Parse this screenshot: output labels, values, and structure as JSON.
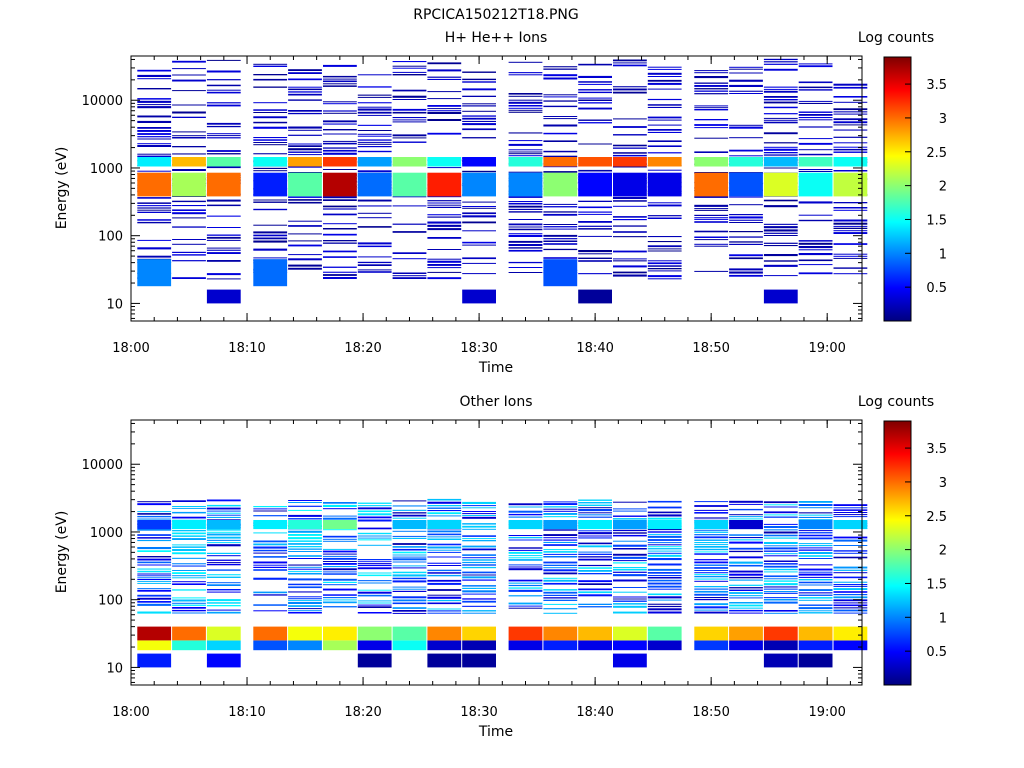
{
  "figure": {
    "title": "RPCICA150212T18.PNG"
  },
  "chart_data": [
    {
      "type": "heatmap",
      "title": "H+ He++ Ions",
      "xlabel": "Time",
      "ylabel": "Energy (eV)",
      "x_ticks": [
        "18:00",
        "18:10",
        "18:20",
        "18:30",
        "18:40",
        "18:50",
        "19:00"
      ],
      "y_ticks": [
        "10",
        "100",
        "1000",
        "10000"
      ],
      "y_scale": "log",
      "xlim": [
        "18:00",
        "19:03"
      ],
      "ylim": [
        5.5,
        45000
      ],
      "time_bins": [
        "18:02",
        "18:05",
        "18:08",
        "18:12",
        "18:15",
        "18:18",
        "18:21",
        "18:24",
        "18:27",
        "18:30",
        "18:34",
        "18:37",
        "18:40",
        "18:43",
        "18:46",
        "18:50",
        "18:53",
        "18:56",
        "18:59",
        "19:02"
      ],
      "colorbar": {
        "label": "Log counts",
        "ticks": [
          "0.5",
          "1",
          "1.5",
          "2",
          "2.5",
          "3",
          "3.5"
        ],
        "range": [
          0,
          3.9
        ]
      },
      "profile_peak": [
        {
          "energy_min": 1050,
          "energy_max": 1450,
          "log_counts": [
            1.4,
            2.7,
            1.8,
            1.5,
            2.8,
            3.2,
            1.1,
            2.0,
            1.5,
            0.5,
            1.6,
            3.0,
            3.1,
            3.2,
            2.9,
            2.0,
            1.6,
            1.2,
            1.7,
            1.5
          ]
        },
        {
          "energy_min": 380,
          "energy_max": 850,
          "log_counts": [
            3.0,
            2.1,
            3.0,
            0.6,
            1.8,
            3.7,
            0.9,
            1.8,
            3.3,
            1.0,
            1.0,
            2.0,
            0.5,
            0.4,
            0.4,
            3.0,
            0.8,
            2.3,
            1.5,
            2.2
          ]
        },
        {
          "energy_min": 18,
          "energy_max": 45,
          "log_counts": [
            1.0,
            0,
            0,
            0.9,
            0,
            0,
            0,
            0,
            0,
            0,
            0,
            0.8,
            0,
            0,
            0,
            0,
            0,
            0,
            0,
            0
          ]
        },
        {
          "energy_min": 10,
          "energy_max": 16,
          "log_counts": [
            0,
            0,
            0.3,
            0,
            0,
            0,
            0,
            0,
            0,
            0.3,
            0,
            0,
            0.1,
            0,
            0,
            0,
            0,
            0.3,
            0,
            0
          ]
        }
      ]
    },
    {
      "type": "heatmap",
      "title": "Other Ions",
      "xlabel": "Time",
      "ylabel": "Energy (eV)",
      "x_ticks": [
        "18:00",
        "18:10",
        "18:20",
        "18:30",
        "18:40",
        "18:50",
        "19:00"
      ],
      "y_ticks": [
        "10",
        "100",
        "1000",
        "10000"
      ],
      "y_scale": "log",
      "xlim": [
        "18:00",
        "19:03"
      ],
      "ylim": [
        5.5,
        45000
      ],
      "time_bins": [
        "18:02",
        "18:05",
        "18:08",
        "18:12",
        "18:15",
        "18:18",
        "18:21",
        "18:24",
        "18:27",
        "18:30",
        "18:34",
        "18:37",
        "18:40",
        "18:43",
        "18:46",
        "18:50",
        "18:53",
        "18:56",
        "18:59",
        "19:02"
      ],
      "colorbar": {
        "label": "Log counts",
        "ticks": [
          "0.5",
          "1",
          "1.5",
          "2",
          "2.5",
          "3",
          "3.5"
        ],
        "range": [
          0,
          3.9
        ]
      },
      "profile_peak": [
        {
          "energy_min": 25,
          "energy_max": 40,
          "log_counts": [
            3.7,
            3.0,
            2.3,
            3.0,
            2.4,
            2.5,
            2.0,
            1.8,
            2.9,
            2.6,
            3.2,
            2.9,
            2.7,
            2.3,
            1.8,
            2.6,
            2.8,
            3.2,
            2.7,
            2.5
          ]
        },
        {
          "energy_min": 18,
          "energy_max": 25,
          "log_counts": [
            2.4,
            1.6,
            1.3,
            0.8,
            1.0,
            2.1,
            0.4,
            1.5,
            0.3,
            0.2,
            0.4,
            0.6,
            0.4,
            0.5,
            0.3,
            0.7,
            0.4,
            0.2,
            0.6,
            0.5
          ]
        },
        {
          "energy_min": 1100,
          "energy_max": 1500,
          "log_counts": [
            0.7,
            1.4,
            1.2,
            1.4,
            1.6,
            1.9,
            0,
            1.2,
            1.3,
            0,
            1.3,
            1.1,
            1.4,
            1.1,
            1.4,
            1.3,
            0.3,
            0,
            1.0,
            1.3
          ]
        },
        {
          "energy_min": 10,
          "energy_max": 16,
          "log_counts": [
            0.6,
            0,
            0.5,
            0,
            0,
            0,
            0.1,
            0,
            0.1,
            0.1,
            0,
            0,
            0,
            0.4,
            0,
            0,
            0,
            0.2,
            0.1,
            0
          ]
        }
      ]
    }
  ]
}
